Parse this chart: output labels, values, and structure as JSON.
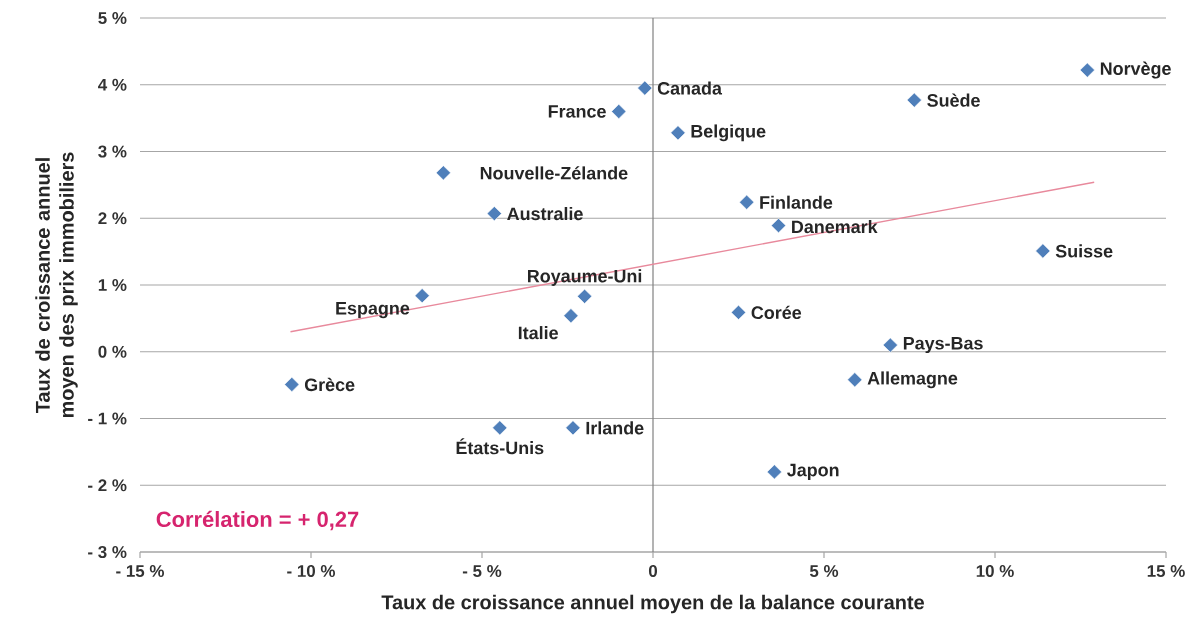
{
  "chart_data": {
    "type": "scatter",
    "xlabel": "Taux de croissance annuel moyen de la balance courante",
    "ylabel": "Taux de croissance annuel moyen des prix immobiliers",
    "xlim": [
      -15,
      15
    ],
    "ylim": [
      -3,
      5
    ],
    "xticks": [
      {
        "value": -15,
        "label": "- 15 %"
      },
      {
        "value": -10,
        "label": "- 10 %"
      },
      {
        "value": -5,
        "label": "- 5 %"
      },
      0,
      {
        "value": 5,
        "label": "5 %"
      },
      {
        "value": 10,
        "label": "10 %"
      },
      {
        "value": 15,
        "label": "15 %"
      }
    ],
    "yticks": [
      {
        "value": -3,
        "label": "- 3 %"
      },
      {
        "value": -2,
        "label": "- 2 %"
      },
      {
        "value": -1,
        "label": "- 1 %"
      },
      {
        "value": 0,
        "label": "0 %"
      },
      {
        "value": 1,
        "label": "1 %"
      },
      {
        "value": 2,
        "label": "2 %"
      },
      {
        "value": 3,
        "label": "3 %"
      },
      {
        "value": 4,
        "label": "4 %"
      },
      {
        "value": 5,
        "label": "5 %"
      }
    ],
    "grid": "y",
    "marker": "diamond",
    "series": [
      {
        "color": "#4f7fba",
        "x": [
          12.7,
          -0.24,
          7.64,
          -1.0,
          0.73,
          -6.13,
          2.74,
          -4.64,
          3.67,
          11.4,
          -6.75,
          -2.0,
          -2.4,
          2.5,
          6.94,
          -10.56,
          5.9,
          -4.48,
          -2.34,
          3.55
        ],
        "values": [
          4.22,
          3.95,
          3.77,
          3.6,
          3.28,
          2.68,
          2.24,
          2.07,
          1.89,
          1.51,
          0.84,
          0.83,
          0.54,
          0.59,
          0.1,
          -0.49,
          -0.42,
          -1.14,
          -1.14,
          -1.8
        ]
      },
      {
        "type": "line",
        "marker": "none",
        "color": "#e8899c",
        "x": [
          -10.6,
          12.9
        ],
        "values": [
          0.3,
          2.54
        ]
      }
    ],
    "ref_lines": [
      {
        "axis": "x",
        "value": 0,
        "color": "#808080"
      }
    ],
    "annotations": [
      {
        "text": "Norvège",
        "x": 12.7,
        "y": 4.22
      },
      {
        "text": "Canada",
        "x": -0.24,
        "y": 3.95
      },
      {
        "text": "Suède",
        "x": 7.64,
        "y": 3.77
      },
      {
        "text": "France",
        "x": -1.0,
        "y": 3.6
      },
      {
        "text": "Belgique",
        "x": 0.73,
        "y": 3.28
      },
      {
        "text": "Nouvelle-Zélande",
        "x": -6.13,
        "y": 2.68
      },
      {
        "text": "Finlande",
        "x": 2.74,
        "y": 2.24
      },
      {
        "text": "Australie",
        "x": -4.64,
        "y": 2.07
      },
      {
        "text": "Danemark",
        "x": 3.67,
        "y": 1.89
      },
      {
        "text": "Suisse",
        "x": 11.4,
        "y": 1.51
      },
      {
        "text": "Espagne",
        "x": -6.75,
        "y": 0.84
      },
      {
        "text": "Royaume-Uni",
        "x": -2.0,
        "y": 0.83
      },
      {
        "text": "Italie",
        "x": -2.4,
        "y": 0.54
      },
      {
        "text": "Corée",
        "x": 2.5,
        "y": 0.59
      },
      {
        "text": "Pays-Bas",
        "x": 6.94,
        "y": 0.1
      },
      {
        "text": "Grèce",
        "x": -10.56,
        "y": -0.49
      },
      {
        "text": "Allemagne",
        "x": 5.9,
        "y": -0.42
      },
      {
        "text": "États-Unis",
        "x": -4.48,
        "y": -1.14
      },
      {
        "text": "Irlande",
        "x": -2.34,
        "y": -1.14
      },
      {
        "text": "Japon",
        "x": 3.55,
        "y": -1.8
      },
      "Corrélation = + 0,27"
    ]
  }
}
